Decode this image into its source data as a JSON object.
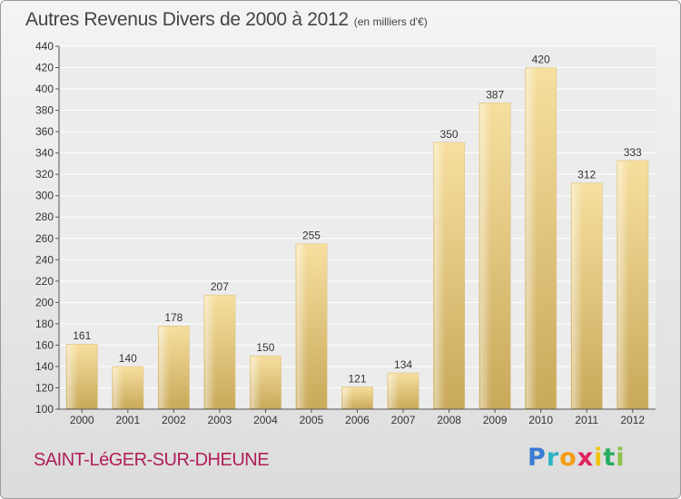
{
  "header": {
    "title": "Autres Revenus Divers de 2000 à 2012",
    "subtitle": "(en milliers d'€)"
  },
  "footer": {
    "commune": "SAINT-LéGER-SUR-DHEUNE",
    "logo_letters": [
      {
        "char": "P",
        "color": "#3a7bd5"
      },
      {
        "char": "r",
        "color": "#2bb5c4"
      },
      {
        "char": "o",
        "color": "#f39c12"
      },
      {
        "char": "x",
        "color": "#e0245e"
      },
      {
        "char": "i",
        "color": "#f1c40f"
      },
      {
        "char": "t",
        "color": "#27ae60"
      },
      {
        "char": "i",
        "color": "#8bc34a"
      }
    ]
  },
  "chart_data": {
    "type": "bar",
    "categories": [
      "2000",
      "2001",
      "2002",
      "2003",
      "2004",
      "2005",
      "2006",
      "2007",
      "2008",
      "2009",
      "2010",
      "2011",
      "2012"
    ],
    "values": [
      161,
      140,
      178,
      207,
      150,
      255,
      121,
      134,
      350,
      387,
      420,
      312,
      333
    ],
    "ylim": [
      100,
      440
    ],
    "yticks": [
      100,
      120,
      140,
      160,
      180,
      200,
      220,
      240,
      260,
      280,
      300,
      320,
      340,
      360,
      380,
      400,
      420,
      440
    ],
    "grid": true,
    "bar_color": "#e8c97e"
  }
}
